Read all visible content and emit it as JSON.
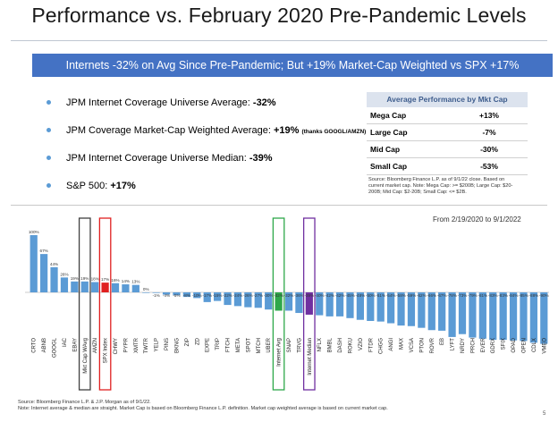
{
  "title": "Performance vs. February 2020 Pre-Pandemic Levels",
  "banner": "Internets -32% on Avg Since Pre-Pandemic; But +19% Market-Cap Weighted vs SPX +17%",
  "bullets": [
    {
      "text": "JPM Internet Coverage Universe Average: ",
      "value": "-32%",
      "note": ""
    },
    {
      "text": "JPM Coverage Market-Cap Weighted Average: ",
      "value": "+19%",
      "note": "(thanks GOOGL/AMZN)"
    },
    {
      "text": "JPM Internet Coverage Universe Median: ",
      "value": "-39%",
      "note": ""
    },
    {
      "text": "S&P 500: ",
      "value": "+17%",
      "note": ""
    }
  ],
  "perf_table": {
    "header": "Average Performance by Mkt Cap",
    "rows": [
      {
        "label": "Mega Cap",
        "value": "+13%"
      },
      {
        "label": "Large Cap",
        "value": "-7%"
      },
      {
        "label": "Mid Cap",
        "value": "-30%"
      },
      {
        "label": "Small Cap",
        "value": "-53%"
      }
    ],
    "note": "Source: Bloomberg Finance L.P. as of 9/1/22 close. Based on current market cap. Note: Mega Cap: >= $200B; Large Cap: $20-200B; Mid Cap: $2-20B; Small Cap: <= $2B."
  },
  "date_range": "From 2/19/2020 to 9/1/2022",
  "footer": [
    "Source: Bloomberg Finance L.P. & J.P. Morgan as of 9/1/22.",
    "Note: Internet average & median are straight. Market Cap is based on Bloomberg Finance L.P. definition. Market cap weighted average is based on current market cap."
  ],
  "page_number": "5",
  "colors": {
    "bar": "#5b9bd5",
    "banner": "#4472c4",
    "highlight_spx": "#e02020",
    "highlight_avg": "#2ea84a",
    "highlight_median": "#7030a0",
    "box_mktcap": "#404040"
  },
  "chart_data": {
    "type": "bar",
    "categories": [
      "CRTO",
      "ABNB",
      "GOOGL",
      "IAC",
      "EBAY",
      "Mkt Cap WAvg",
      "AMZN",
      "SPX Index",
      "CHWY",
      "PYPR",
      "XMTR",
      "TWTR",
      "YELP",
      "PINS",
      "BKNG",
      "ZIP",
      "ZD",
      "EXPE",
      "TRIP",
      "FTCH",
      "META",
      "SPOT",
      "MTCH",
      "UBER",
      "Internet Avg",
      "SNAP",
      "TRVG",
      "Internet Median",
      "NFLX",
      "BMBL",
      "DASH",
      "ROKU",
      "VZIO",
      "FTDR",
      "CHGG",
      "ANGI",
      "MAX",
      "VCSA",
      "PTON",
      "ROVR",
      "EB",
      "LYFT",
      "NRDY",
      "PRCH",
      "EVER",
      "GDRX",
      "SFIX",
      "OPAD",
      "OPEN",
      "CDLX",
      "VMEO"
    ],
    "values": [
      100,
      67,
      44,
      26,
      19,
      19,
      18,
      17,
      16,
      14,
      13,
      0,
      -1,
      -4,
      -5,
      -8,
      -10,
      -17,
      -15,
      -22,
      -24,
      -26,
      -27,
      -30,
      -32,
      -32,
      -36,
      -39,
      -40,
      -42,
      -42,
      -45,
      -48,
      -50,
      -51,
      -54,
      -58,
      -59,
      -62,
      -66,
      -67,
      -78,
      -73,
      -79,
      -81,
      -83,
      -83,
      -84,
      -85,
      -88,
      -90
    ],
    "labels": [
      "100%",
      "67%",
      "44%",
      "26%",
      "19%",
      "19%",
      "18%",
      "17%",
      "16%",
      "14%",
      "13%",
      "0%",
      "-1%",
      "-4%",
      "-5%",
      "-8%",
      "-10%",
      "-17%",
      "-15%",
      "-22%",
      "-24%",
      "-26%",
      "-27%",
      "-30%",
      "-32%",
      "-32%",
      "-36%",
      "-39%",
      "-40%",
      "-42%",
      "-42%",
      "-45%",
      "-48%",
      "-50%",
      "-51%",
      "-54%",
      "-58%",
      "-59%",
      "-62%",
      "-66%",
      "-67%",
      "-78%",
      "-73%",
      "-79%",
      "-81%",
      "-83%",
      "-83%",
      "-84%",
      "-85%",
      "-88%",
      "-90%"
    ],
    "ylim": [
      -100,
      110
    ],
    "highlights": {
      "Mkt Cap WAvg": "box",
      "SPX Index": "spx",
      "Internet Avg": "avg",
      "Internet Median": "median"
    }
  }
}
